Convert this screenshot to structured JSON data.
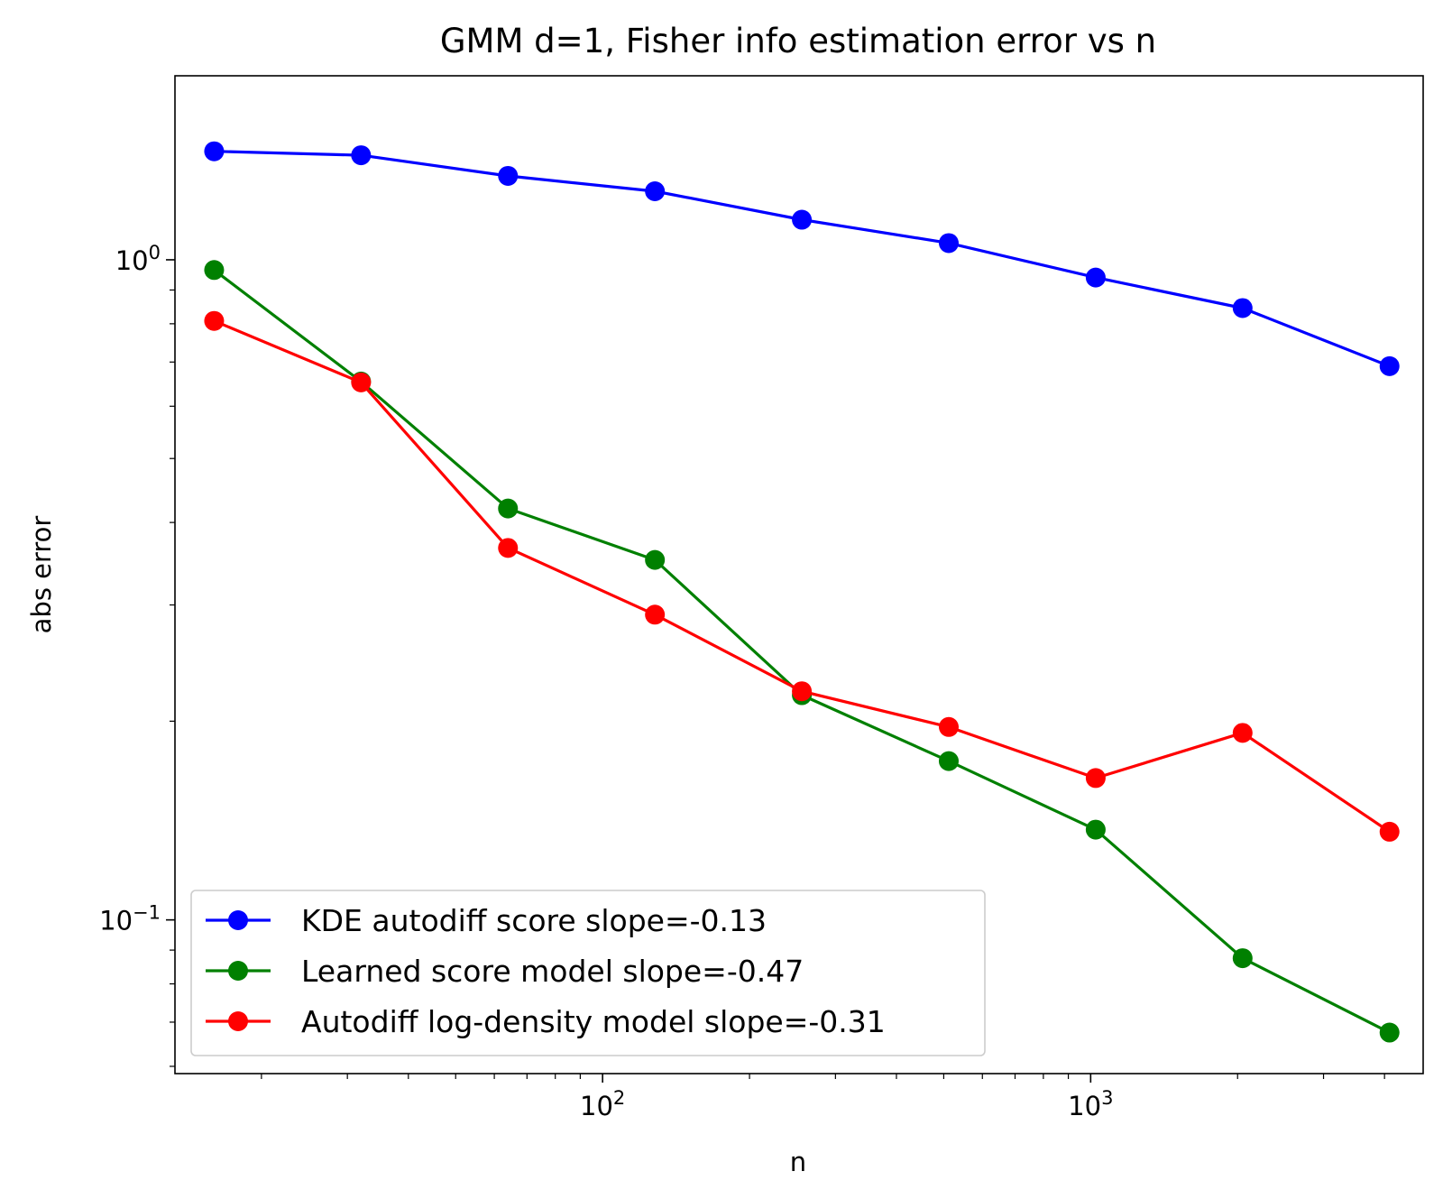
{
  "chart_data": {
    "type": "line",
    "title": "GMM d=1, Fisher info estimation error vs n",
    "xlabel": "n",
    "ylabel": "abs error",
    "xscale": "log",
    "yscale": "log",
    "xlim": [
      13.3,
      4800
    ],
    "ylim": [
      0.0585,
      1.9
    ],
    "grid": false,
    "legend_position": "lower-left",
    "x": [
      16,
      32,
      64,
      128,
      256,
      512,
      1024,
      2048,
      4096
    ],
    "x_ticks": [
      {
        "value": 100,
        "base": "10",
        "exp": "2"
      },
      {
        "value": 1000,
        "base": "10",
        "exp": "3"
      }
    ],
    "y_ticks": [
      {
        "value": 1,
        "base": "10",
        "exp": "0"
      },
      {
        "value": 0.1,
        "base": "10",
        "exp": "−1"
      }
    ],
    "series": [
      {
        "name": "KDE autodiff score slope=-0.13",
        "color": "#0000ff",
        "values": [
          1.46,
          1.44,
          1.34,
          1.27,
          1.15,
          1.06,
          0.94,
          0.845,
          0.69
        ]
      },
      {
        "name": "Learned score model slope=-0.47",
        "color": "#008000",
        "values": [
          0.965,
          0.654,
          0.42,
          0.351,
          0.219,
          0.174,
          0.137,
          0.0875,
          0.0675
        ]
      },
      {
        "name": "Autodiff log-density model slope=-0.31",
        "color": "#ff0000",
        "values": [
          0.808,
          0.652,
          0.366,
          0.29,
          0.222,
          0.196,
          0.164,
          0.192,
          0.136
        ]
      }
    ]
  }
}
